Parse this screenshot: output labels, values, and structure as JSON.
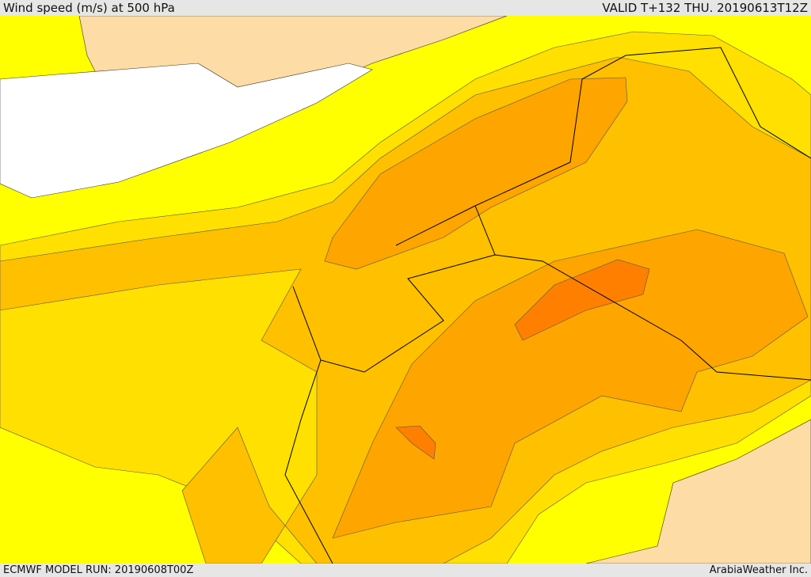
{
  "header": {
    "title": "Wind speed (m/s) at 500 hPa",
    "valid": "VALID T+132 THU. 20190613T12Z"
  },
  "footer": {
    "model_run": "ECMWF MODEL RUN: 20190608T00Z",
    "credit": "ArabiaWeather Inc."
  }
}
